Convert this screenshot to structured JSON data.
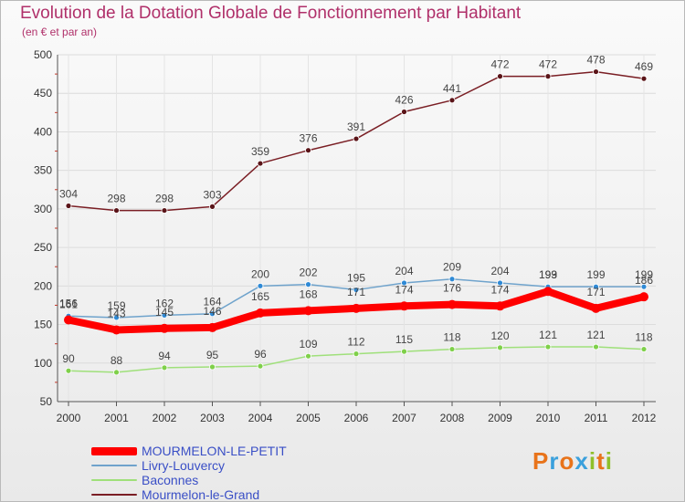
{
  "title": "Evolution de la Dotation Globale de Fonctionnement par Habitant",
  "subtitle": "(en € et par an)",
  "brand": {
    "letters": [
      "P",
      "r",
      "o",
      "x",
      "i",
      "t",
      "i"
    ],
    "colors": [
      "#e8731a",
      "#3aa0dc",
      "#e8731a",
      "#3aa0dc",
      "#8fbf2a",
      "#e8731a",
      "#8fbf2a"
    ]
  },
  "chart_data": {
    "type": "line",
    "title": "Evolution de la Dotation Globale de Fonctionnement par Habitant",
    "subtitle": "(en € et par an)",
    "x": [
      "2000",
      "2001",
      "2002",
      "2003",
      "2004",
      "2005",
      "2006",
      "2007",
      "2008",
      "2009",
      "2010",
      "2011",
      "2012"
    ],
    "ylim": [
      50,
      500
    ],
    "yticks": [
      "50",
      "100",
      "150",
      "200",
      "250",
      "300",
      "350",
      "400",
      "450",
      "500"
    ],
    "grid": true,
    "legend_position": "bottom-left",
    "series": [
      {
        "name": "Mourmelon-le-Grand",
        "color": "#7a1e24",
        "marker": "#5a1418",
        "thick": false,
        "values": [
          304,
          298,
          298,
          303,
          359,
          376,
          391,
          426,
          441,
          472,
          472,
          478,
          469
        ]
      },
      {
        "name": "Livry-Louvercy",
        "color": "#6fa3cc",
        "marker": "#2f8ad6",
        "thick": false,
        "values": [
          161,
          159,
          162,
          164,
          200,
          202,
          195,
          204,
          209,
          204,
          199,
          199,
          199
        ]
      },
      {
        "name": "Baconnes",
        "color": "#9fe07a",
        "marker": "#7fd04a",
        "thick": false,
        "values": [
          90,
          88,
          94,
          95,
          96,
          109,
          112,
          115,
          118,
          120,
          121,
          121,
          118
        ]
      },
      {
        "name": "MOURMELON-LE-PETIT",
        "color": "#ff0000",
        "marker": "#ff0000",
        "thick": true,
        "values": [
          156,
          143,
          145,
          146,
          165,
          168,
          171,
          174,
          176,
          174,
          193,
          171,
          186
        ]
      }
    ],
    "legend": [
      "MOURMELON-LE-PETIT",
      "Livry-Louvercy",
      "Baconnes",
      "Mourmelon-le-Grand"
    ]
  }
}
